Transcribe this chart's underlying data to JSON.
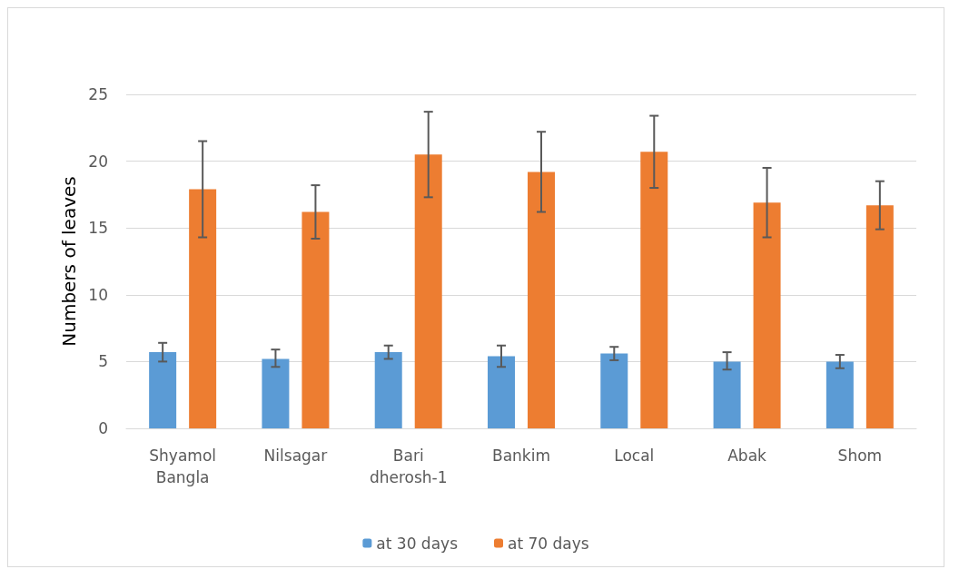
{
  "chart_data": {
    "type": "bar",
    "ylabel": "Numbers of leaves",
    "categories": [
      "Shyamol\nBangla",
      "Nilsagar",
      "Bari\ndherosh-1",
      "Bankim",
      "Local",
      "Abak",
      "Shom"
    ],
    "series": [
      {
        "name": "at 30 days",
        "color": "#5b9bd5",
        "values": [
          5.7,
          5.2,
          5.7,
          5.4,
          5.6,
          5.0,
          5.0
        ],
        "errors": [
          [
            5.0,
            6.4
          ],
          [
            4.6,
            5.9
          ],
          [
            5.2,
            6.2
          ],
          [
            4.6,
            6.2
          ],
          [
            5.1,
            6.1
          ],
          [
            4.4,
            5.7
          ],
          [
            4.5,
            5.5
          ]
        ]
      },
      {
        "name": "at 70 days",
        "color": "#ed7d31",
        "values": [
          17.9,
          16.2,
          20.5,
          19.2,
          20.7,
          16.9,
          16.7
        ],
        "errors": [
          [
            14.3,
            21.5
          ],
          [
            14.2,
            18.2
          ],
          [
            17.3,
            23.7
          ],
          [
            16.2,
            22.2
          ],
          [
            18.0,
            23.4
          ],
          [
            14.3,
            19.5
          ],
          [
            14.9,
            18.5
          ]
        ]
      }
    ],
    "ylim": [
      0,
      25
    ],
    "yticks": [
      0,
      5,
      10,
      15,
      20,
      25
    ],
    "grid": "y",
    "legend": "bottom"
  }
}
